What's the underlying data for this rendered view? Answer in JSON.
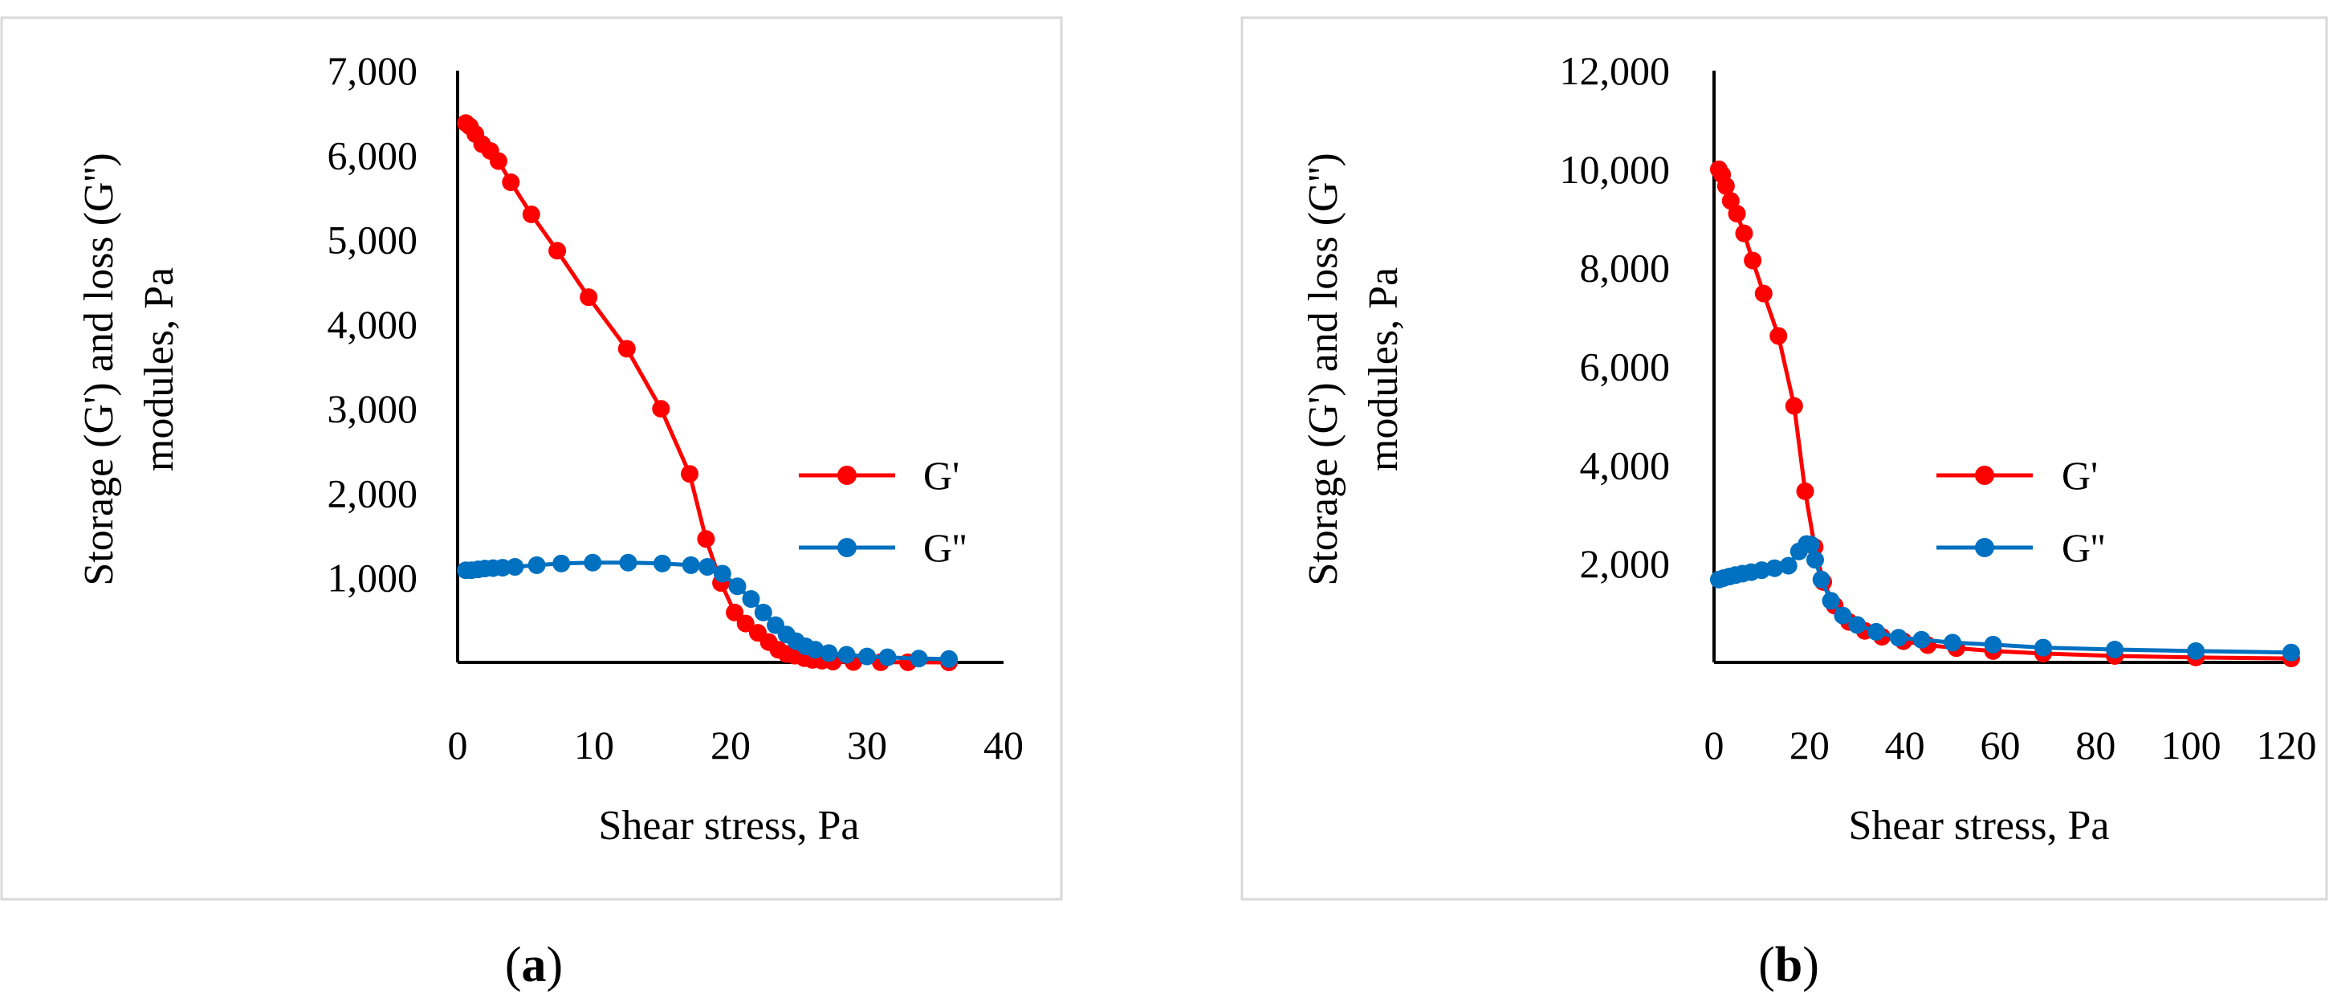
{
  "chart_data": [
    {
      "type": "line",
      "panel_label": "a",
      "title": "",
      "xlabel": "Shear stress, Pa",
      "ylabel_lines": [
        "Storage (G') and loss  (G'')",
        "modules, Pa"
      ],
      "xlim": [
        0,
        40
      ],
      "ylim": [
        0,
        7000
      ],
      "x_ticks": [
        0,
        10,
        20,
        30,
        40
      ],
      "x_tick_labels": [
        "0",
        "10",
        "20",
        "30",
        "40"
      ],
      "y_ticks": [
        1000,
        2000,
        3000,
        4000,
        5000,
        6000,
        7000
      ],
      "y_tick_labels": [
        "1,000",
        "2,000",
        "3,000",
        "4,000",
        "5,000",
        "6,000",
        "7,000"
      ],
      "grid": false,
      "legend_position": "right",
      "series": [
        {
          "name": "G'",
          "color": "#ff0000",
          "x": [
            0.6,
            0.9,
            1.3,
            1.8,
            2.4,
            3.0,
            3.9,
            5.4,
            7.3,
            9.6,
            12.4,
            14.9,
            17.0,
            18.2,
            19.3,
            20.3,
            21.1,
            22.0,
            22.8,
            23.5,
            24.1,
            24.7,
            25.4,
            26.0,
            26.7,
            27.5,
            29.0,
            31.0,
            33.0,
            36.0
          ],
          "y": [
            6380,
            6340,
            6250,
            6130,
            6050,
            5930,
            5680,
            5300,
            4870,
            4320,
            3710,
            3000,
            2230,
            1460,
            940,
            590,
            460,
            350,
            240,
            150,
            100,
            80,
            50,
            30,
            20,
            10,
            5,
            2,
            1,
            0
          ]
        },
        {
          "name": "G''",
          "color": "#0070c0",
          "x": [
            0.6,
            1.0,
            1.5,
            2.0,
            2.6,
            3.3,
            4.2,
            5.8,
            7.6,
            9.9,
            12.5,
            15.0,
            17.1,
            18.3,
            19.4,
            20.5,
            21.5,
            22.4,
            23.3,
            24.1,
            24.8,
            25.5,
            26.2,
            27.2,
            28.5,
            30.0,
            31.5,
            33.8,
            36.0
          ],
          "y": [
            1090,
            1090,
            1100,
            1110,
            1115,
            1120,
            1130,
            1150,
            1170,
            1180,
            1180,
            1170,
            1150,
            1130,
            1050,
            900,
            750,
            590,
            440,
            330,
            250,
            190,
            150,
            110,
            90,
            70,
            60,
            45,
            40
          ]
        }
      ]
    },
    {
      "type": "line",
      "panel_label": "b",
      "title": "",
      "xlabel": "Shear stress, Pa",
      "ylabel_lines": [
        "Storage (G') and loss  (G'')",
        "modules, Pa"
      ],
      "xlim": [
        0,
        120
      ],
      "ylim": [
        0,
        12000
      ],
      "x_ticks": [
        0,
        20,
        40,
        60,
        80,
        100,
        120
      ],
      "x_tick_labels": [
        "0",
        "20",
        "40",
        "60",
        "80",
        "100",
        "120"
      ],
      "y_ticks": [
        2000,
        4000,
        6000,
        8000,
        10000,
        12000
      ],
      "y_tick_labels": [
        "2,000",
        "4,000",
        "6,000",
        "8,000",
        "10,000",
        "12,000"
      ],
      "grid": false,
      "legend_position": "right",
      "series": [
        {
          "name": "G'",
          "color": "#ff0000",
          "x": [
            1.0,
            1.7,
            2.5,
            3.5,
            4.8,
            6.3,
            8.1,
            10.4,
            13.5,
            16.8,
            19.1,
            21.1,
            22.9,
            25.3,
            28.3,
            31.6,
            35.2,
            39.7,
            44.8,
            50.8,
            58.5,
            69.0,
            84.0,
            101.0,
            121.0
          ],
          "y": [
            10000,
            9890,
            9660,
            9360,
            9100,
            8700,
            8150,
            7480,
            6620,
            5200,
            3470,
            2340,
            1630,
            1150,
            820,
            640,
            520,
            430,
            350,
            290,
            230,
            180,
            130,
            100,
            80
          ]
        },
        {
          "name": "G''",
          "color": "#0070c0",
          "x": [
            1.0,
            2.0,
            3.2,
            4.5,
            6.0,
            7.8,
            10.0,
            12.7,
            15.6,
            17.8,
            19.4,
            20.3,
            21.2,
            22.5,
            24.5,
            27.0,
            30.0,
            34.0,
            38.7,
            43.5,
            50.0,
            58.5,
            69.0,
            84.0,
            101.0,
            121.0
          ],
          "y": [
            1680,
            1710,
            1740,
            1770,
            1800,
            1830,
            1870,
            1910,
            1960,
            2250,
            2400,
            2390,
            2080,
            1680,
            1250,
            950,
            760,
            620,
            500,
            460,
            400,
            360,
            300,
            260,
            230,
            200
          ]
        }
      ]
    }
  ],
  "captions": [
    {
      "open": "(",
      "letter": "a",
      "close": ")"
    },
    {
      "open": "(",
      "letter": "b",
      "close": ")"
    }
  ]
}
